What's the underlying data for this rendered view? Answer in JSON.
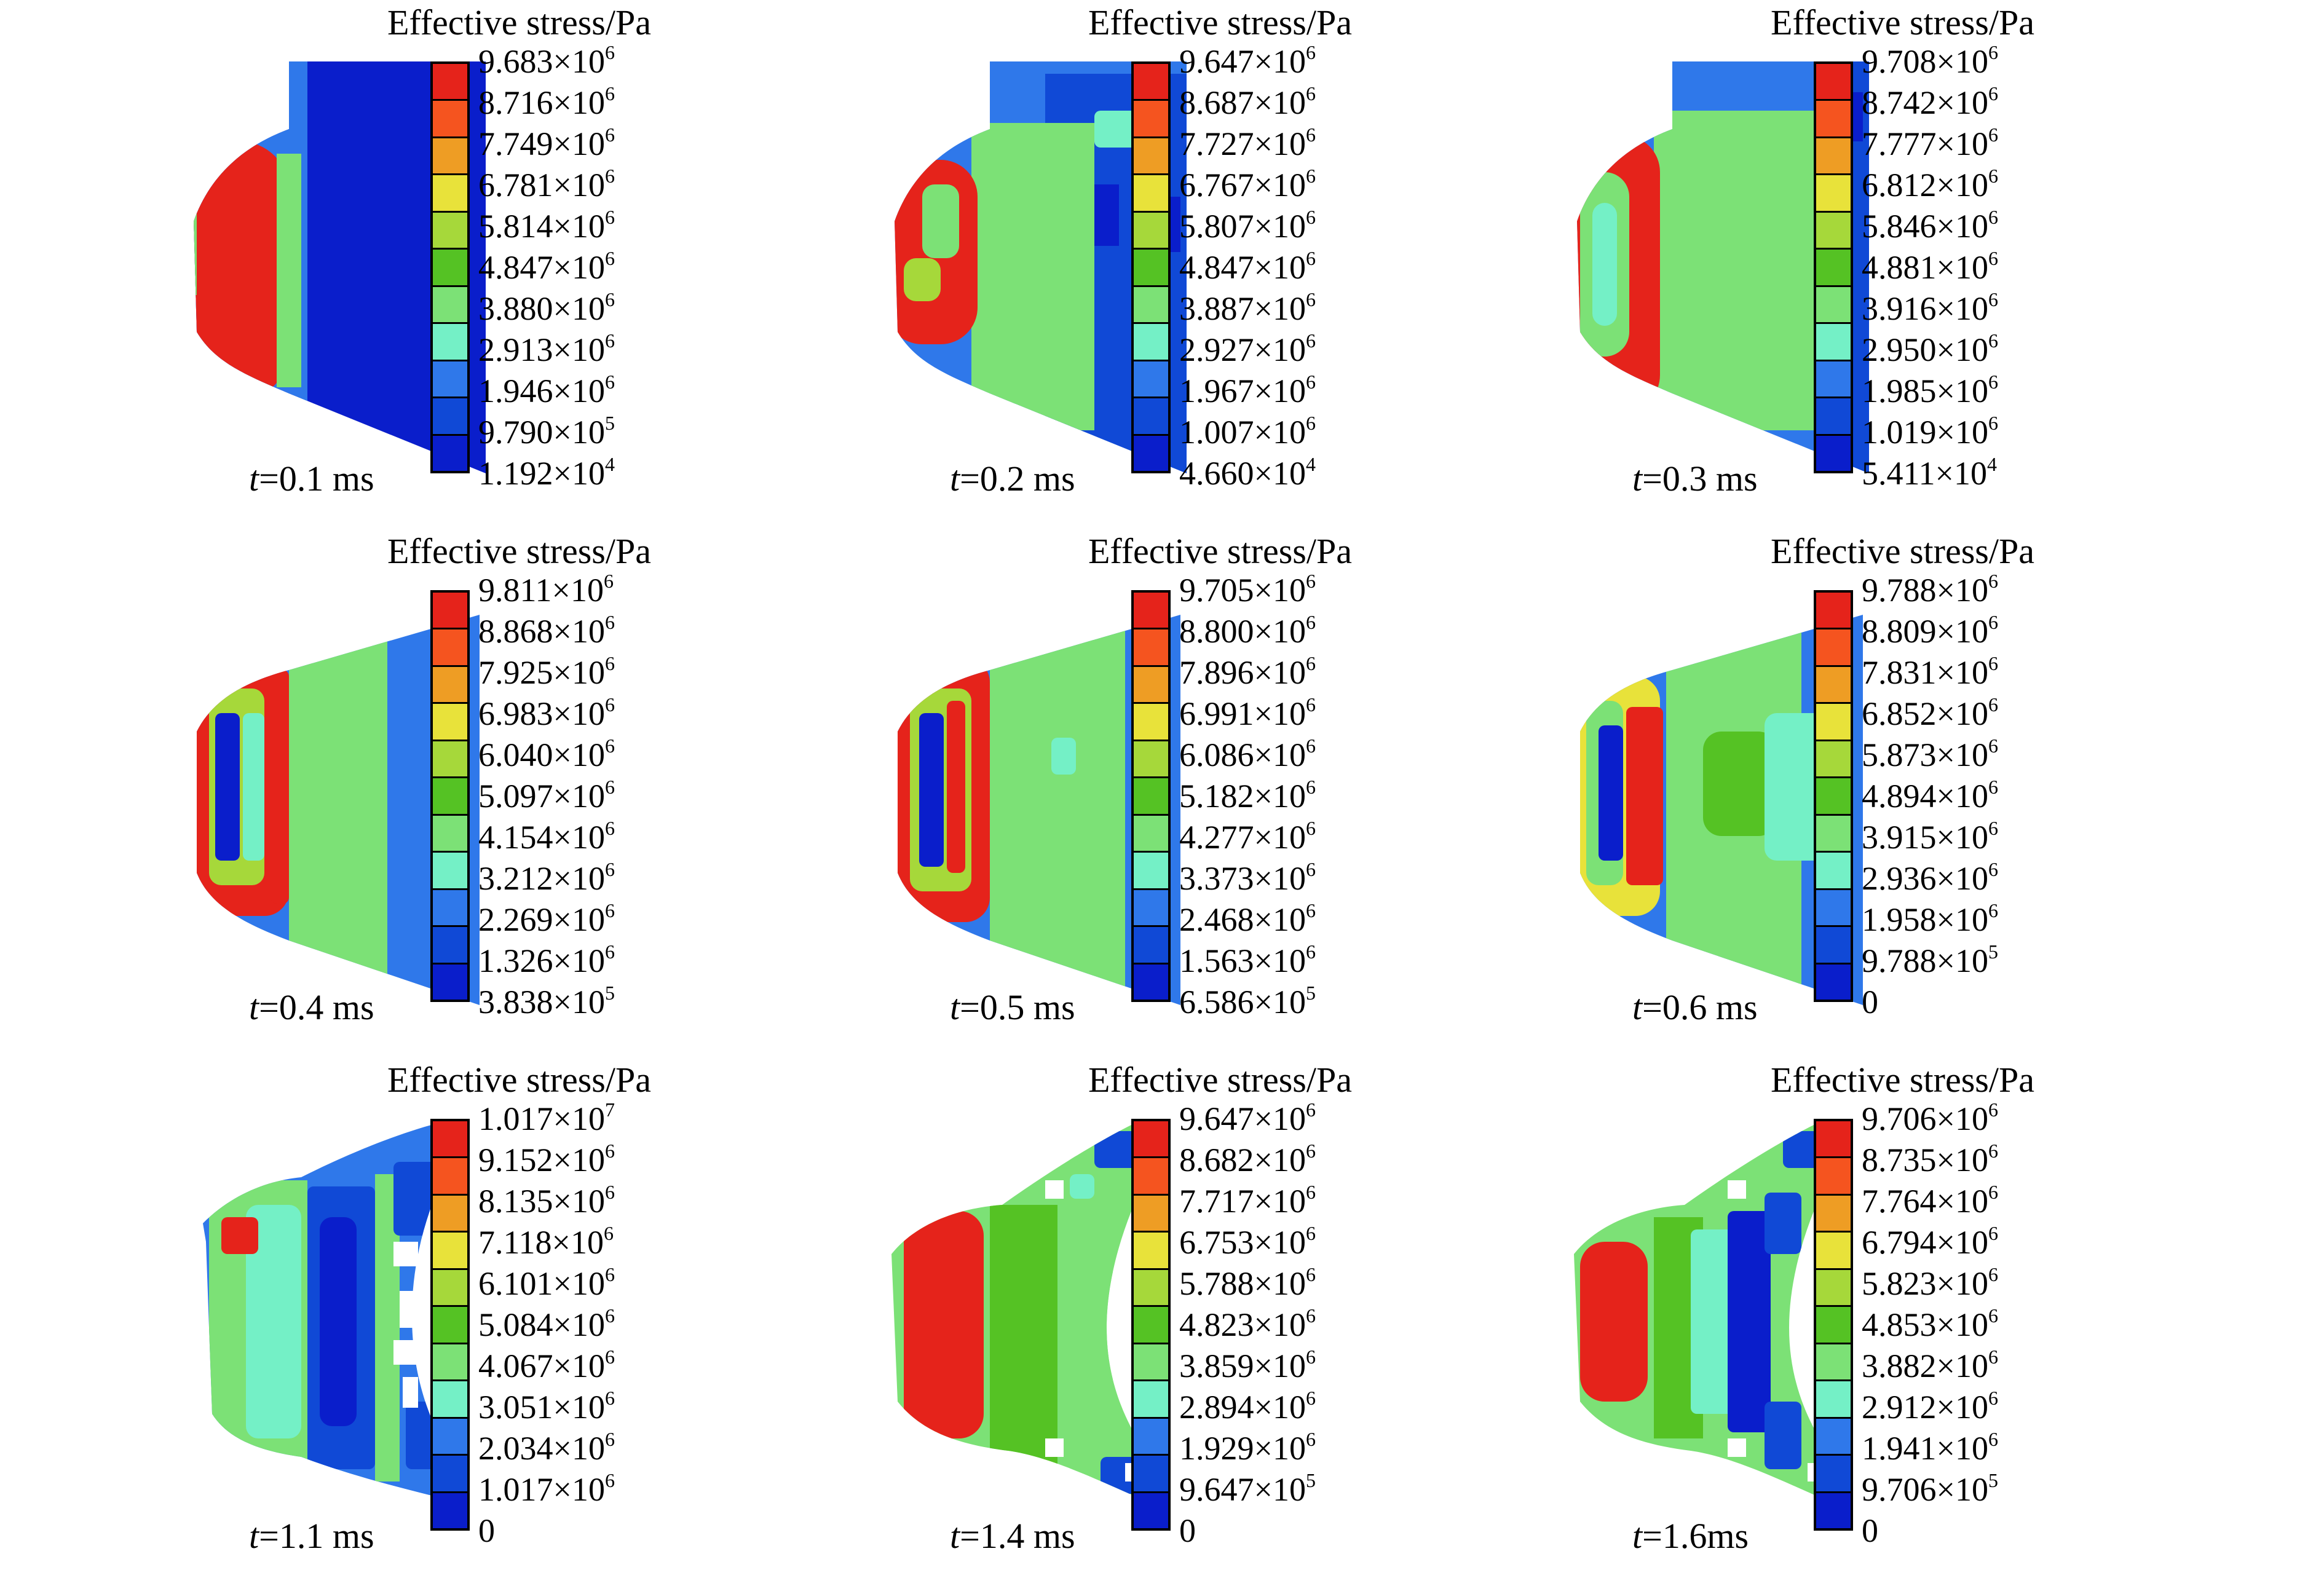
{
  "legend_colors": [
    "#e5231b",
    "#f5541f",
    "#ee9d24",
    "#e8e23a",
    "#a6d83a",
    "#55c224",
    "#7ce176",
    "#74f0c6",
    "#2f78ea",
    "#1049d6",
    "#0a1ecb"
  ],
  "panels": [
    {
      "title": "Effective stress/Pa",
      "time_var": "t",
      "time_val": "=0.1 ms",
      "shape": "cone",
      "ticks": [
        [
          "9.683×10",
          "6"
        ],
        [
          "8.716×10",
          "6"
        ],
        [
          "7.749×10",
          "6"
        ],
        [
          "6.781×10",
          "6"
        ],
        [
          "5.814×10",
          "6"
        ],
        [
          "4.847×10",
          "6"
        ],
        [
          "3.880×10",
          "6"
        ],
        [
          "2.913×10",
          "6"
        ],
        [
          "1.946×10",
          "6"
        ],
        [
          "9.790×10",
          "5"
        ],
        [
          "1.192×10",
          "4"
        ]
      ]
    },
    {
      "title": "Effective stress/Pa",
      "time_var": "t",
      "time_val": "=0.2 ms",
      "shape": "cone",
      "ticks": [
        [
          "9.647×10",
          "6"
        ],
        [
          "8.687×10",
          "6"
        ],
        [
          "7.727×10",
          "6"
        ],
        [
          "6.767×10",
          "6"
        ],
        [
          "5.807×10",
          "6"
        ],
        [
          "4.847×10",
          "6"
        ],
        [
          "3.887×10",
          "6"
        ],
        [
          "2.927×10",
          "6"
        ],
        [
          "1.967×10",
          "6"
        ],
        [
          "1.007×10",
          "6"
        ],
        [
          "4.660×10",
          "4"
        ]
      ]
    },
    {
      "title": "Effective stress/Pa",
      "time_var": "t",
      "time_val": "=0.3 ms",
      "shape": "cone",
      "ticks": [
        [
          "9.708×10",
          "6"
        ],
        [
          "8.742×10",
          "6"
        ],
        [
          "7.777×10",
          "6"
        ],
        [
          "6.812×10",
          "6"
        ],
        [
          "5.846×10",
          "6"
        ],
        [
          "4.881×10",
          "6"
        ],
        [
          "3.916×10",
          "6"
        ],
        [
          "2.950×10",
          "6"
        ],
        [
          "1.985×10",
          "6"
        ],
        [
          "1.019×10",
          "6"
        ],
        [
          "5.411×10",
          "4"
        ]
      ]
    },
    {
      "title": "Effective stress/Pa",
      "time_var": "t",
      "time_val": "=0.4 ms",
      "shape": "cone",
      "ticks": [
        [
          "9.811×10",
          "6"
        ],
        [
          "8.868×10",
          "6"
        ],
        [
          "7.925×10",
          "6"
        ],
        [
          "6.983×10",
          "6"
        ],
        [
          "6.040×10",
          "6"
        ],
        [
          "5.097×10",
          "6"
        ],
        [
          "4.154×10",
          "6"
        ],
        [
          "3.212×10",
          "6"
        ],
        [
          "2.269×10",
          "6"
        ],
        [
          "1.326×10",
          "6"
        ],
        [
          "3.838×10",
          "5"
        ]
      ]
    },
    {
      "title": "Effective stress/Pa",
      "time_var": "t",
      "time_val": "=0.5 ms",
      "shape": "cone",
      "ticks": [
        [
          "9.705×10",
          "6"
        ],
        [
          "8.800×10",
          "6"
        ],
        [
          "7.896×10",
          "6"
        ],
        [
          "6.991×10",
          "6"
        ],
        [
          "6.086×10",
          "6"
        ],
        [
          "5.182×10",
          "6"
        ],
        [
          "4.277×10",
          "6"
        ],
        [
          "3.373×10",
          "6"
        ],
        [
          "2.468×10",
          "6"
        ],
        [
          "1.563×10",
          "6"
        ],
        [
          "6.586×10",
          "5"
        ]
      ]
    },
    {
      "title": "Effective stress/Pa",
      "time_var": "t",
      "time_val": "=0.6 ms",
      "shape": "cone",
      "ticks": [
        [
          "9.788×10",
          "6"
        ],
        [
          "8.809×10",
          "6"
        ],
        [
          "7.831×10",
          "6"
        ],
        [
          "6.852×10",
          "6"
        ],
        [
          "5.873×10",
          "6"
        ],
        [
          "4.894×10",
          "6"
        ],
        [
          "3.915×10",
          "6"
        ],
        [
          "2.936×10",
          "6"
        ],
        [
          "1.958×10",
          "6"
        ],
        [
          "9.788×10",
          "5"
        ],
        [
          "0",
          ""
        ]
      ]
    },
    {
      "title": "Effective stress/Pa",
      "time_var": "t",
      "time_val": "=1.1 ms",
      "shape": "fractured",
      "ticks": [
        [
          "1.017×10",
          "7"
        ],
        [
          "9.152×10",
          "6"
        ],
        [
          "8.135×10",
          "6"
        ],
        [
          "7.118×10",
          "6"
        ],
        [
          "6.101×10",
          "6"
        ],
        [
          "5.084×10",
          "6"
        ],
        [
          "4.067×10",
          "6"
        ],
        [
          "3.051×10",
          "6"
        ],
        [
          "2.034×10",
          "6"
        ],
        [
          "1.017×10",
          "6"
        ],
        [
          "0",
          ""
        ]
      ]
    },
    {
      "title": "Effective stress/Pa",
      "time_var": "t",
      "time_val": "=1.4 ms",
      "shape": "crescent",
      "ticks": [
        [
          "9.647×10",
          "6"
        ],
        [
          "8.682×10",
          "6"
        ],
        [
          "7.717×10",
          "6"
        ],
        [
          "6.753×10",
          "6"
        ],
        [
          "5.788×10",
          "6"
        ],
        [
          "4.823×10",
          "6"
        ],
        [
          "3.859×10",
          "6"
        ],
        [
          "2.894×10",
          "6"
        ],
        [
          "1.929×10",
          "6"
        ],
        [
          "9.647×10",
          "5"
        ],
        [
          "0",
          ""
        ]
      ]
    },
    {
      "title": "Effective stress/Pa",
      "time_var": "t",
      "time_val": "=1.6ms",
      "shape": "crescent",
      "ticks": [
        [
          "9.706×10",
          "6"
        ],
        [
          "8.735×10",
          "6"
        ],
        [
          "7.764×10",
          "6"
        ],
        [
          "6.794×10",
          "6"
        ],
        [
          "5.823×10",
          "6"
        ],
        [
          "4.853×10",
          "6"
        ],
        [
          "3.882×10",
          "6"
        ],
        [
          "2.912×10",
          "6"
        ],
        [
          "1.941×10",
          "6"
        ],
        [
          "9.706×10",
          "5"
        ],
        [
          "0",
          ""
        ]
      ]
    }
  ]
}
